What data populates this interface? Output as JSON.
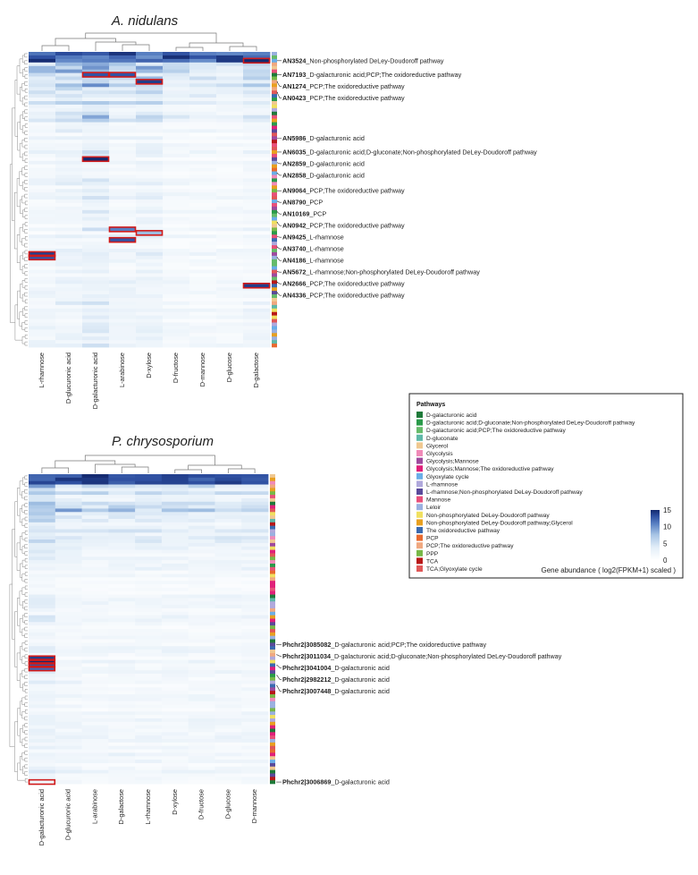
{
  "chart_data": [
    {
      "type": "heatmap",
      "id": "nidulans",
      "title": "A. nidulans",
      "columns": [
        "L-rhamnose",
        "D-glucuronic acid",
        "D-galacturonic acid",
        "L-arabinose",
        "D-xylose",
        "D-fructose",
        "D-mannose",
        "D-glucose",
        "D-galactose"
      ],
      "row_count": 84,
      "value_range": [
        0,
        15
      ],
      "highlights": [
        {
          "row": 2,
          "col": 8,
          "value": 15
        },
        {
          "row": 6,
          "col": 2,
          "value": 13
        },
        {
          "row": 6,
          "col": 3,
          "value": 13
        },
        {
          "row": 8,
          "col": 4,
          "value": 14
        },
        {
          "row": 30,
          "col": 2,
          "value": 15
        },
        {
          "row": 50,
          "col": 3,
          "value": 11
        },
        {
          "row": 51,
          "col": 4,
          "value": 8
        },
        {
          "row": 53,
          "col": 3,
          "value": 13
        },
        {
          "row": 57,
          "col": 0,
          "value": 14
        },
        {
          "row": 58,
          "col": 0,
          "value": 13
        },
        {
          "row": 66,
          "col": 8,
          "value": 14
        }
      ],
      "labeled_genes": [
        {
          "row": 2,
          "id": "AN3524",
          "pathway": "_Non-phosphorylated DeLey-Doudoroff pathway"
        },
        {
          "row": 6,
          "id": "AN7193",
          "pathway": "_D-galacturonic acid;PCP;The oxidoreductive pathway"
        },
        {
          "row": 8,
          "id": "AN1274",
          "pathway": "_PCP;The oxidoreductive pathway"
        },
        {
          "row": 11,
          "id": "AN0423",
          "pathway": "_PCP;The oxidoreductive pathway"
        },
        {
          "row": 24,
          "id": "AN5986",
          "pathway": "_D-galacturonic acid"
        },
        {
          "row": 28,
          "id": "AN6035",
          "pathway": "_D-galacturonic acid;D-gluconate;Non-phosphorylated DeLey-Doudoroff pathway"
        },
        {
          "row": 31,
          "id": "AN2859",
          "pathway": "_D-galacturonic acid"
        },
        {
          "row": 34,
          "id": "AN2858",
          "pathway": "_D-galacturonic acid"
        },
        {
          "row": 39,
          "id": "AN9064",
          "pathway": "_PCP;The oxidoreductive pathway"
        },
        {
          "row": 42,
          "id": "AN8790",
          "pathway": "_PCP"
        },
        {
          "row": 45,
          "id": "AN10169",
          "pathway": "_PCP"
        },
        {
          "row": 48,
          "id": "AN0942",
          "pathway": "_PCP;The oxidoreductive pathway"
        },
        {
          "row": 52,
          "id": "AN9425",
          "pathway": "_L-rhamnose"
        },
        {
          "row": 55,
          "id": "AN3740",
          "pathway": "_L-rhamnose"
        },
        {
          "row": 58,
          "id": "AN4186",
          "pathway": "_L-rhamnose"
        },
        {
          "row": 62,
          "id": "AN5672",
          "pathway": "_L-rhamnose;Non-phosphorylated DeLey-Doudoroff pathway"
        },
        {
          "row": 65,
          "id": "AN2666",
          "pathway": "_PCP;The oxidoreductive pathway"
        },
        {
          "row": 68,
          "id": "AN4336",
          "pathway": "_PCP;The oxidoreductive pathway"
        }
      ]
    },
    {
      "type": "heatmap",
      "id": "chrysosporium",
      "title": "P. chrysosporium",
      "columns": [
        "D-galacturonic acid",
        "D-glucuronic acid",
        "L-arabinose",
        "D-galactose",
        "L-rhamnose",
        "D-xylose",
        "D-fructose",
        "D-glucose",
        "D-mannose"
      ],
      "row_count": 90,
      "value_range": [
        0,
        15
      ],
      "highlights": [
        {
          "row": 53,
          "col": 0,
          "value": 14
        },
        {
          "row": 54,
          "col": 0,
          "value": 15
        },
        {
          "row": 55,
          "col": 0,
          "value": 13
        },
        {
          "row": 56,
          "col": 0,
          "value": 12
        },
        {
          "row": 89,
          "col": 0,
          "value": 2
        }
      ],
      "labeled_genes": [
        {
          "row": 49,
          "id": "Phchr2|3085082",
          "pathway": "_D-galacturonic acid;PCP;The oxidoreductive pathway"
        },
        {
          "row": 52,
          "id": "Phchr2|3011034",
          "pathway": "_D-galacturonic acid;D-gluconate;Non-phosphorylated DeLey-Doudoroff pathway"
        },
        {
          "row": 55,
          "id": "Phchr2|3041004",
          "pathway": "_D-galacturonic acid"
        },
        {
          "row": 58,
          "id": "Phchr2|2982212",
          "pathway": "_D-galacturonic acid"
        },
        {
          "row": 61,
          "id": "Phchr2|3007448",
          "pathway": "_D-galacturonic acid"
        },
        {
          "row": 89,
          "id": "Phchr2|3006869",
          "pathway": "_D-galacturonic acid"
        }
      ]
    }
  ],
  "legend": {
    "title": "Pathways",
    "items": [
      {
        "label": "D-galacturonic acid",
        "color": "#1f7a3a"
      },
      {
        "label": "D-galacturonic acid;D-gluconate;Non-phosphorylated DeLey-Doudoroff pathway",
        "color": "#2a9a4a"
      },
      {
        "label": "D-galacturonic acid;PCP;The oxidoreductive pathway",
        "color": "#66bb6a"
      },
      {
        "label": "D-gluconate",
        "color": "#5fb8a8"
      },
      {
        "label": "Glycerol",
        "color": "#f0c890"
      },
      {
        "label": "Glycolysis",
        "color": "#f08ab8"
      },
      {
        "label": "Glycolysis;Mannose",
        "color": "#9e4a9e"
      },
      {
        "label": "Glycolysis;Mannose;The oxidoreductive pathway",
        "color": "#e0207a"
      },
      {
        "label": "Glyoxylate cycle",
        "color": "#6aaee8"
      },
      {
        "label": "L-rhamnose",
        "color": "#b0a8dc"
      },
      {
        "label": "L-rhamnose;Non-phosphorylated DeLey-Doudoroff pathway",
        "color": "#5a4a9a"
      },
      {
        "label": "Mannose",
        "color": "#e8507a"
      },
      {
        "label": "Leloir",
        "color": "#9ab0e0"
      },
      {
        "label": "Non-phosphorylated DeLey-Doudoroff pathway",
        "color": "#f0e060"
      },
      {
        "label": "Non-phosphorylated DeLey-Doudoroff pathway;Glycerol",
        "color": "#e8a020"
      },
      {
        "label": "The oxidoreductive pathway",
        "color": "#3a6ab0"
      },
      {
        "label": "PCP",
        "color": "#e86a30"
      },
      {
        "label": "PCP;The oxidoreductive pathway",
        "color": "#f0a880"
      },
      {
        "label": "PPP",
        "color": "#78b848"
      },
      {
        "label": "TCA",
        "color": "#b81818"
      },
      {
        "label": "TCA;Glyoxylate cycle",
        "color": "#e05858"
      }
    ]
  },
  "colorbar": {
    "ticks": [
      15,
      10,
      5,
      0
    ],
    "title": "Gene abundance ( log2(FPKM+1) scaled )",
    "low_color": "#ffffff",
    "high_color": "#13296e"
  },
  "highlight_color": "#d01a1a"
}
